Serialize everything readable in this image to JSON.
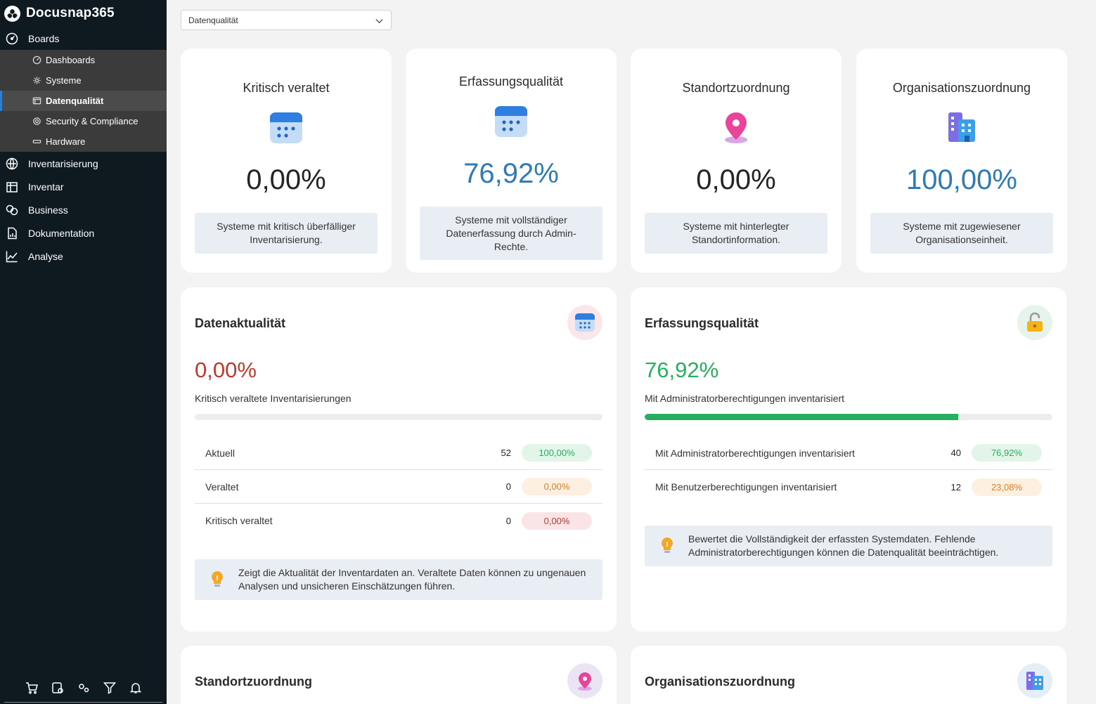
{
  "app": {
    "title": "Docusnap365"
  },
  "nav": {
    "boards": "Boards",
    "sub_items": [
      {
        "label": "Dashboards"
      },
      {
        "label": "Systeme"
      },
      {
        "label": "Datenqualität"
      },
      {
        "label": "Security & Compliance"
      },
      {
        "label": "Hardware"
      }
    ],
    "inventarisierung": "Inventarisierung",
    "inventar": "Inventar",
    "business": "Business",
    "dokumentation": "Dokumentation",
    "analyse": "Analyse"
  },
  "dropdown": {
    "value": "Datenqualität"
  },
  "kpis": [
    {
      "title": "Kritisch veraltet",
      "value": "0,00%",
      "desc": "Systeme mit kritisch überfälliger Inventarisierung.",
      "icon": "calendar-icon",
      "color": "#242424"
    },
    {
      "title": "Erfassungsqualität",
      "value": "76,92%",
      "desc": "Systeme mit vollständiger Datenerfassung durch Admin-Rechte.",
      "icon": "calendar-icon",
      "color": "#2e7bb6"
    },
    {
      "title": "Standortzuordnung",
      "value": "0,00%",
      "desc": "Systeme mit hinterlegter Standortinformation.",
      "icon": "location-pin-icon",
      "color": "#242424"
    },
    {
      "title": "Organisationszuordnung",
      "value": "100,00%",
      "desc": "Systeme mit zugewiesener Organisationseinheit.",
      "icon": "building-icon",
      "color": "#2e7bb6"
    }
  ],
  "aktualitaet": {
    "title": "Datenaktualität",
    "value": "0,00%",
    "value_color": "#c0392b",
    "subtitle": "Kritisch veraltete Inventarisierungen",
    "progress": 0,
    "rows": [
      {
        "label": "Aktuell",
        "count": "52",
        "pct": "100,00%",
        "pill_bg": "#e3f4e9",
        "pill_fg": "#27ae60"
      },
      {
        "label": "Veraltet",
        "count": "0",
        "pct": "0,00%",
        "pill_bg": "#fdf0e1",
        "pill_fg": "#e67e22"
      },
      {
        "label": "Kritisch veraltet",
        "count": "0",
        "pct": "0,00%",
        "pill_bg": "#fbe4e6",
        "pill_fg": "#c0392b"
      }
    ],
    "hint": "Zeigt die Aktualität der Inventardaten an. Veraltete Daten können zu ungenauen Analysen und unsicheren Einschätzungen führen."
  },
  "erfassung": {
    "title": "Erfassungsqualität",
    "value": "76,92%",
    "value_color": "#27ae60",
    "subtitle": "Mit Administratorberechtigungen inventarisiert",
    "progress": 76.92,
    "rows": [
      {
        "label": "Mit Administratorberechtigungen inventarisiert",
        "count": "40",
        "pct": "76,92%",
        "pill_bg": "#e3f4e9",
        "pill_fg": "#27ae60"
      },
      {
        "label": "Mit Benutzerberechtigungen inventarisiert",
        "count": "12",
        "pct": "23,08%",
        "pill_bg": "#fdf0e1",
        "pill_fg": "#e67e22"
      }
    ],
    "hint": "Bewertet die Vollständigkeit der erfassten Systemdaten. Fehlende Administratorberechtigungen können die Datenqualität beeinträchtigen."
  },
  "standort": {
    "title": "Standortzuordnung"
  },
  "organisation": {
    "title": "Organisationszuordnung"
  },
  "colors": {
    "sidebar": "#0e1a20",
    "accent_blue": "#2e7bb6",
    "green": "#27ae60",
    "orange": "#e67e22",
    "red": "#c0392b"
  }
}
